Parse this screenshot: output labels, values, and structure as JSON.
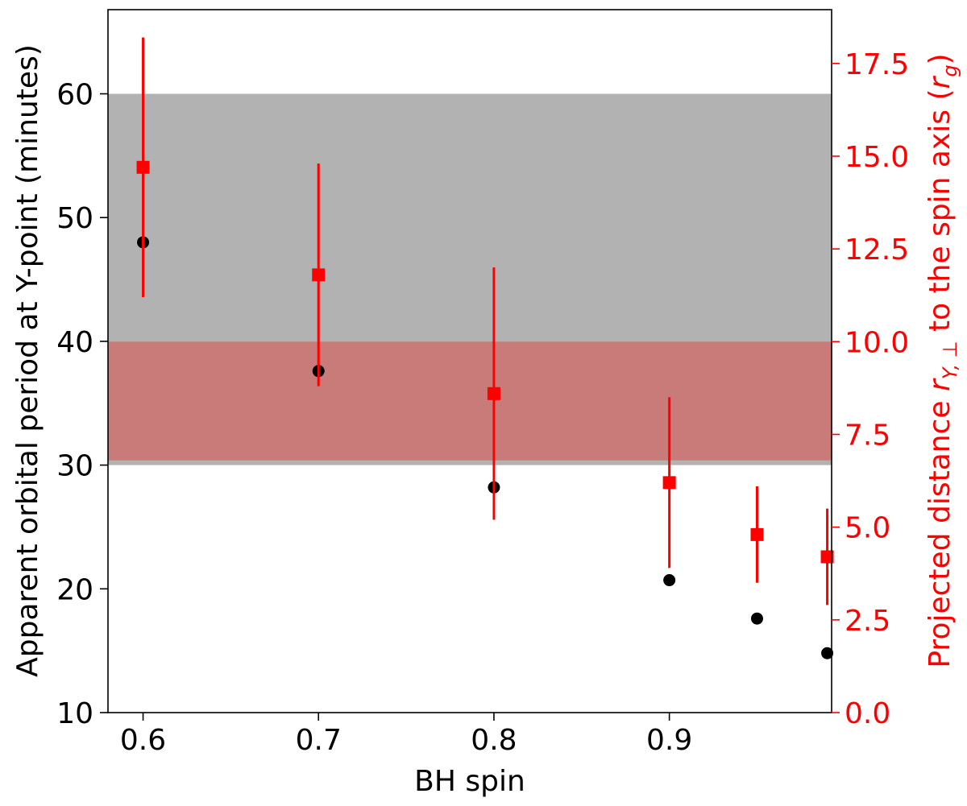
{
  "chart_data": {
    "type": "scatter",
    "xlabel": "BH spin",
    "ylabel_left": "Apparent orbital period at Y-point (minutes)",
    "ylabel_right": {
      "prefix": "Projected distance ",
      "symbol": "r",
      "subscript": "Y, ⊥",
      "suffix": " to the spin axis (",
      "unit_symbol": "r",
      "unit_subscript": "g",
      "close": ")"
    },
    "xlim": [
      0.58,
      0.9925
    ],
    "ylim_left": [
      10,
      66.8
    ],
    "ylim_right": [
      0.0,
      18.95
    ],
    "x_ticks": [
      {
        "value": 0.6,
        "label": "0.6"
      },
      {
        "value": 0.7,
        "label": "0.7"
      },
      {
        "value": 0.8,
        "label": "0.8"
      },
      {
        "value": 0.9,
        "label": "0.9"
      }
    ],
    "y_left_ticks": [
      {
        "value": 10,
        "label": "10"
      },
      {
        "value": 20,
        "label": "20"
      },
      {
        "value": 30,
        "label": "30"
      },
      {
        "value": 40,
        "label": "40"
      },
      {
        "value": 50,
        "label": "50"
      },
      {
        "value": 60,
        "label": "60"
      }
    ],
    "y_right_ticks": [
      {
        "value": 0.0,
        "label": "0.0"
      },
      {
        "value": 2.5,
        "label": "2.5"
      },
      {
        "value": 5.0,
        "label": "5.0"
      },
      {
        "value": 7.5,
        "label": "7.5"
      },
      {
        "value": 10.0,
        "label": "10.0"
      },
      {
        "value": 12.5,
        "label": "12.5"
      },
      {
        "value": 15.0,
        "label": "15.0"
      },
      {
        "value": 17.5,
        "label": "17.5"
      }
    ],
    "bands": [
      {
        "axis": "left",
        "y0": 30,
        "y1": 60,
        "color": "#b2b2b2"
      },
      {
        "axis": "right",
        "y0": 6.8,
        "y1": 10.0,
        "color": "#c97b79"
      }
    ],
    "series": [
      {
        "axis": "left",
        "marker": "circle",
        "color": "#000000",
        "points": [
          {
            "x": 0.6,
            "y": 48.0
          },
          {
            "x": 0.7,
            "y": 37.6
          },
          {
            "x": 0.8,
            "y": 28.2
          },
          {
            "x": 0.9,
            "y": 20.7
          },
          {
            "x": 0.95,
            "y": 17.6
          },
          {
            "x": 0.99,
            "y": 14.8
          }
        ]
      },
      {
        "axis": "right",
        "marker": "square",
        "color": "#ff0000",
        "points": [
          {
            "x": 0.6,
            "y": 14.7,
            "ylo": 11.2,
            "yhi": 18.2
          },
          {
            "x": 0.7,
            "y": 11.8,
            "ylo": 8.8,
            "yhi": 14.8
          },
          {
            "x": 0.8,
            "y": 8.6,
            "ylo": 5.2,
            "yhi": 12.0
          },
          {
            "x": 0.9,
            "y": 6.2,
            "ylo": 3.9,
            "yhi": 8.5
          },
          {
            "x": 0.95,
            "y": 4.8,
            "ylo": 3.5,
            "yhi": 6.1
          },
          {
            "x": 0.99,
            "y": 4.2,
            "ylo": 2.9,
            "yhi": 5.5
          }
        ]
      }
    ],
    "colors": {
      "left_axis": "#000000",
      "right_axis": "#ff0000"
    }
  }
}
